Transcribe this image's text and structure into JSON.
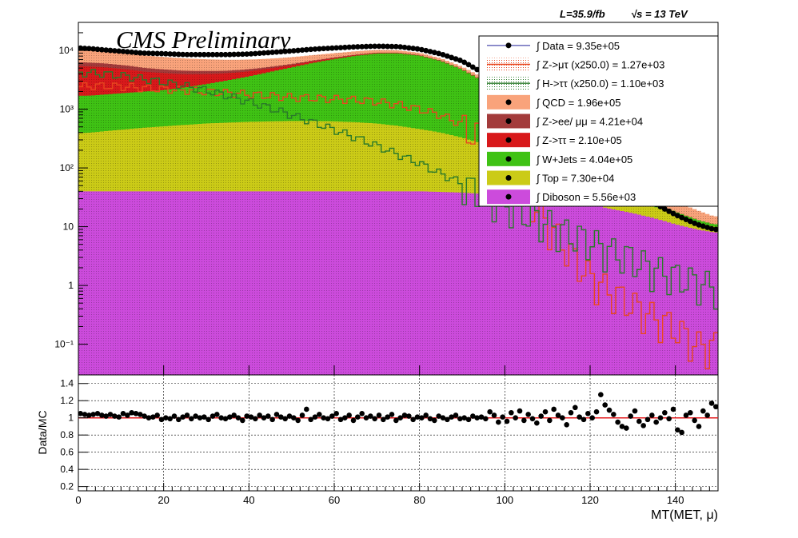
{
  "header": {
    "experiment_label": "CMS Preliminary",
    "lumi_label": "L=35.9/fb",
    "energy_label": "√s = 13 TeV"
  },
  "colors": {
    "qcd": "#f9a37b",
    "zll": "#a33b3b",
    "ztautau": "#d8191b",
    "wjets": "#3fc214",
    "top": "#cbcb17",
    "diboson": "#cc4bdc",
    "signal_zmutau": "#e8471f",
    "signal_htautau": "#2a7a2a",
    "data": "#000000",
    "ratio_line": "#e31a1c"
  },
  "chart_data": [
    {
      "type": "area",
      "title": "",
      "xlabel": "",
      "ylabel": "",
      "xlim": [
        0,
        150
      ],
      "ylim": [
        0.03,
        30000
      ],
      "log_y": true,
      "y_ticks": [
        0.1,
        1,
        10,
        100,
        1000,
        10000
      ],
      "y_tick_labels": [
        "10⁻¹",
        "1",
        "10",
        "10²",
        "10³",
        "10⁴"
      ],
      "bin_width": 1,
      "x": [
        0,
        3,
        6,
        9,
        12,
        15,
        20,
        25,
        30,
        35,
        40,
        45,
        50,
        55,
        60,
        65,
        70,
        75,
        80,
        85,
        90,
        95,
        100,
        105,
        110,
        115,
        120,
        125,
        130,
        135,
        140,
        145,
        149
      ],
      "stack_order_bottom_to_top": [
        "Diboson",
        "Top",
        "W+Jets",
        "Z->ττ",
        "Z->ee/ μμ",
        "QCD"
      ],
      "series": [
        {
          "name": "Diboson",
          "color_key": "diboson",
          "values": [
            40,
            40,
            40,
            40,
            40,
            40,
            40,
            40,
            40,
            40,
            40,
            40,
            40,
            40,
            40,
            40,
            40,
            40,
            40,
            39,
            38,
            36,
            35,
            33,
            30,
            27,
            24,
            20,
            17,
            14,
            11,
            9,
            8
          ]
        },
        {
          "name": "Top",
          "color_key": "top",
          "values": [
            350,
            360,
            380,
            400,
            420,
            440,
            470,
            500,
            530,
            550,
            570,
            580,
            590,
            590,
            580,
            560,
            530,
            480,
            420,
            360,
            290,
            220,
            160,
            110,
            70,
            45,
            30,
            20,
            12,
            8,
            5,
            3,
            2
          ]
        },
        {
          "name": "W+Jets",
          "color_key": "wjets",
          "values": [
            1300,
            1300,
            1350,
            1400,
            1450,
            1500,
            1600,
            1800,
            2100,
            2500,
            3000,
            3700,
            4500,
            5500,
            6500,
            7500,
            8300,
            8400,
            7700,
            6200,
            4400,
            2700,
            1300,
            600,
            270,
            110,
            45,
            18,
            8,
            4,
            2,
            1.2,
            1
          ]
        },
        {
          "name": "Z->ττ",
          "color_key": "ztautau",
          "values": [
            3700,
            3600,
            3400,
            3100,
            2800,
            2400,
            2000,
            1600,
            1300,
            1000,
            800,
            620,
            480,
            370,
            280,
            210,
            160,
            120,
            90,
            65,
            45,
            30,
            20,
            13,
            8,
            5,
            3,
            2,
            1,
            1,
            0,
            0,
            0
          ]
        },
        {
          "name": "Z->ee/ μμ",
          "color_key": "zll",
          "values": [
            900,
            880,
            850,
            800,
            760,
            710,
            640,
            570,
            500,
            440,
            380,
            320,
            270,
            230,
            190,
            160,
            130,
            105,
            80,
            60,
            42,
            28,
            18,
            11,
            6,
            4,
            2,
            1,
            1,
            0,
            0,
            0,
            0
          ]
        },
        {
          "name": "QCD",
          "color_key": "qcd",
          "values": [
            4500,
            4200,
            3900,
            3600,
            3400,
            3200,
            3000,
            2800,
            2600,
            2400,
            2200,
            2000,
            1800,
            1600,
            1400,
            1200,
            1050,
            900,
            760,
            620,
            500,
            380,
            280,
            200,
            140,
            95,
            60,
            40,
            25,
            15,
            9,
            6,
            4
          ]
        }
      ],
      "signals": [
        {
          "name": "Z->μτ (x250.0)",
          "color_key": "signal_zmutau",
          "values": [
            2400,
            2500,
            2500,
            2450,
            2400,
            2300,
            2200,
            2100,
            2000,
            1900,
            1800,
            1700,
            1600,
            1550,
            1500,
            1450,
            1350,
            1200,
            1000,
            800,
            550,
            320,
            120,
            40,
            12,
            4,
            1.5,
            0.8,
            0.5,
            0.3,
            0.2,
            0.1,
            0.1
          ]
        },
        {
          "name": "H->ττ (x250.0)",
          "color_key": "signal_htautau",
          "values": [
            4200,
            4150,
            4000,
            3800,
            3600,
            3300,
            2900,
            2500,
            2100,
            1700,
            1350,
            1050,
            800,
            600,
            450,
            330,
            240,
            170,
            120,
            80,
            55,
            38,
            26,
            18,
            12,
            8,
            6,
            4,
            3,
            2,
            1.5,
            1.2,
            1
          ]
        }
      ],
      "data_points": {
        "name": "Data",
        "x": [
          0,
          3,
          6,
          9,
          12,
          15,
          20,
          25,
          30,
          35,
          40,
          45,
          50,
          55,
          60,
          65,
          70,
          75,
          80,
          85,
          90,
          95,
          100,
          105,
          110,
          115,
          120,
          125,
          130,
          135,
          140,
          145,
          149
        ],
        "values": [
          11000,
          10700,
          10200,
          9800,
          9400,
          9000,
          8800,
          8500,
          8500,
          8500,
          8700,
          9200,
          9800,
          10500,
          11000,
          11500,
          11800,
          11600,
          10500,
          8700,
          6600,
          4100,
          2200,
          1100,
          540,
          270,
          140,
          75,
          42,
          25,
          16,
          11,
          9
        ]
      },
      "legend": {
        "placement": "top-right",
        "entries": [
          {
            "label": "∫ Data = 9.35e+05",
            "style": "data",
            "color_key": "data"
          },
          {
            "label": "∫ Z->μτ (x250.0) = 1.27e+03",
            "style": "hatch",
            "color_key": "signal_zmutau"
          },
          {
            "label": "∫ H->ττ (x250.0) = 1.10e+03",
            "style": "hatch",
            "color_key": "signal_htautau"
          },
          {
            "label": "∫ QCD = 1.96e+05",
            "style": "fill",
            "color_key": "qcd"
          },
          {
            "label": "∫ Z->ee/ μμ = 4.21e+04",
            "style": "fill",
            "color_key": "zll"
          },
          {
            "label": "∫ Z->ττ = 2.10e+05",
            "style": "fill",
            "color_key": "ztautau"
          },
          {
            "label": "∫ W+Jets = 4.04e+05",
            "style": "fill",
            "color_key": "wjets"
          },
          {
            "label": "∫ Top = 7.30e+04",
            "style": "fill",
            "color_key": "top"
          },
          {
            "label": "∫ Diboson = 5.56e+03",
            "style": "fill",
            "color_key": "diboson"
          }
        ]
      }
    },
    {
      "type": "scatter",
      "title": "",
      "xlabel": "MT(MET, μ)",
      "ylabel": "Data/MC",
      "xlim": [
        0,
        150
      ],
      "ylim": [
        0.15,
        1.5
      ],
      "x_ticks": [
        0,
        20,
        40,
        60,
        80,
        100,
        120,
        140
      ],
      "y_ticks": [
        0.2,
        0.4,
        0.6,
        0.8,
        1,
        1.2,
        1.4
      ],
      "grid": true,
      "reference_line": 1,
      "x": [
        0.5,
        1.5,
        2.5,
        3.5,
        4.5,
        5.5,
        6.5,
        7.5,
        8.5,
        9.5,
        10.5,
        11.5,
        12.5,
        13.5,
        14.5,
        15.5,
        16.5,
        17.5,
        18.5,
        19.5,
        20.5,
        21.5,
        22.5,
        23.5,
        24.5,
        25.5,
        26.5,
        27.5,
        28.5,
        29.5,
        30.5,
        31.5,
        32.5,
        33.5,
        34.5,
        35.5,
        36.5,
        37.5,
        38.5,
        39.5,
        40.5,
        41.5,
        42.5,
        43.5,
        44.5,
        45.5,
        46.5,
        47.5,
        48.5,
        49.5,
        50.5,
        51.5,
        52.5,
        53.5,
        54.5,
        55.5,
        56.5,
        57.5,
        58.5,
        59.5,
        60.5,
        61.5,
        62.5,
        63.5,
        64.5,
        65.5,
        66.5,
        67.5,
        68.5,
        69.5,
        70.5,
        71.5,
        72.5,
        73.5,
        74.5,
        75.5,
        76.5,
        77.5,
        78.5,
        79.5,
        80.5,
        81.5,
        82.5,
        83.5,
        84.5,
        85.5,
        86.5,
        87.5,
        88.5,
        89.5,
        90.5,
        91.5,
        92.5,
        93.5,
        94.5,
        95.5,
        96.5,
        97.5,
        98.5,
        99.5,
        100.5,
        101.5,
        102.5,
        103.5,
        104.5,
        105.5,
        106.5,
        107.5,
        108.5,
        109.5,
        110.5,
        111.5,
        112.5,
        113.5,
        114.5,
        115.5,
        116.5,
        117.5,
        118.5,
        119.5,
        120.5,
        121.5,
        122.5,
        123.5,
        124.5,
        125.5,
        126.5,
        127.5,
        128.5,
        129.5,
        130.5,
        131.5,
        132.5,
        133.5,
        134.5,
        135.5,
        136.5,
        137.5,
        138.5,
        139.5,
        140.5,
        141.5,
        142.5,
        143.5,
        144.5,
        145.5,
        146.5,
        147.5,
        148.5,
        149.5
      ],
      "values": [
        1.05,
        1.04,
        1.03,
        1.04,
        1.05,
        1.03,
        1.02,
        1.04,
        1.02,
        1.01,
        1.05,
        1.03,
        1.06,
        1.05,
        1.04,
        1.02,
        1.0,
        1.01,
        1.03,
        0.98,
        1.0,
        0.99,
        1.02,
        0.98,
        1.01,
        1.03,
        0.99,
        1.02,
        1.0,
        1.01,
        0.98,
        1.02,
        1.04,
        1.0,
        0.99,
        1.01,
        1.03,
        1.0,
        0.97,
        1.02,
        1.01,
        0.99,
        1.03,
        1.0,
        1.02,
        0.98,
        1.04,
        1.01,
        0.99,
        1.02,
        1.0,
        0.97,
        1.03,
        1.1,
        0.98,
        1.01,
        1.04,
        1.0,
        0.99,
        1.02,
        1.05,
        0.98,
        1.0,
        1.03,
        0.97,
        1.01,
        1.05,
        1.0,
        1.02,
        0.99,
        1.03,
        0.98,
        1.01,
        1.04,
        0.97,
        1.0,
        1.03,
        1.02,
        0.98,
        1.01,
        1.0,
        1.03,
        0.99,
        0.97,
        1.02,
        1.0,
        0.98,
        1.01,
        1.03,
        0.99,
        1.0,
        0.98,
        1.02,
        1.0,
        1.01,
        0.99,
        1.07,
        1.03,
        0.95,
        1.01,
        0.96,
        1.06,
        1.0,
        1.08,
        0.97,
        1.04,
        0.99,
        0.94,
        1.02,
        1.07,
        0.97,
        1.1,
        1.03,
        1.0,
        0.92,
        1.06,
        1.12,
        1.01,
        0.98,
        1.05,
        1.0,
        1.07,
        1.27,
        1.15,
        1.09,
        1.04,
        0.95,
        0.9,
        0.88,
        1.02,
        1.08,
        0.96,
        0.91,
        0.98,
        1.03,
        0.95,
        1.0,
        1.06,
        0.99,
        1.1,
        0.86,
        0.83,
        1.03,
        1.06,
        0.97,
        0.9,
        1.08,
        1.03,
        1.17,
        1.13
      ]
    }
  ]
}
